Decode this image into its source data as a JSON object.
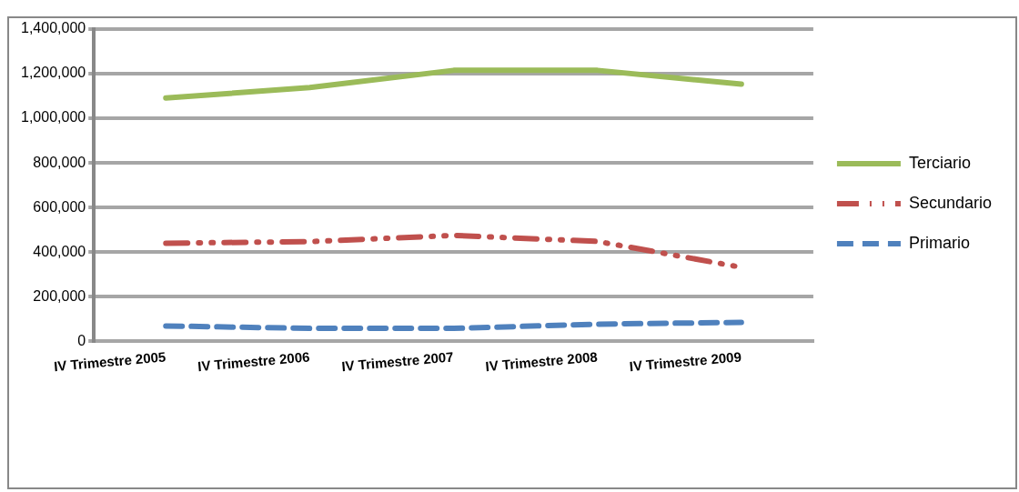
{
  "chart_data": {
    "type": "line",
    "categories": [
      "IV Trimestre 2005",
      "IV Trimestre 2006",
      "IV Trimestre 2007",
      "IV Trimestre 2008",
      "IV Trimestre 2009"
    ],
    "series": [
      {
        "name": "Terciario",
        "color": "#9bbb59",
        "line_style": "solid",
        "values": [
          1091000,
          1138000,
          1215000,
          1215000,
          1153000
        ]
      },
      {
        "name": "Secundario",
        "color": "#c0504d",
        "line_style": "dashdot",
        "values": [
          440000,
          447000,
          475000,
          448000,
          332000
        ]
      },
      {
        "name": "Primario",
        "color": "#4f81bd",
        "line_style": "dashed",
        "values": [
          69000,
          58000,
          58000,
          77000,
          85000
        ]
      }
    ],
    "ylim": [
      0,
      1400000
    ],
    "yticks": [
      0,
      {
        "value": 200000,
        "label": "200,000"
      },
      {
        "value": 400000,
        "label": "400,000"
      },
      {
        "value": 600000,
        "label": "600,000"
      },
      {
        "value": 800000,
        "label": "800,000"
      },
      {
        "value": 1000000,
        "label": "1,000,000"
      },
      {
        "value": 1200000,
        "label": "1,200,000"
      },
      {
        "value": 1400000,
        "label": "1,400,000"
      }
    ],
    "grid": "y",
    "legend": "right",
    "marker": "none"
  }
}
